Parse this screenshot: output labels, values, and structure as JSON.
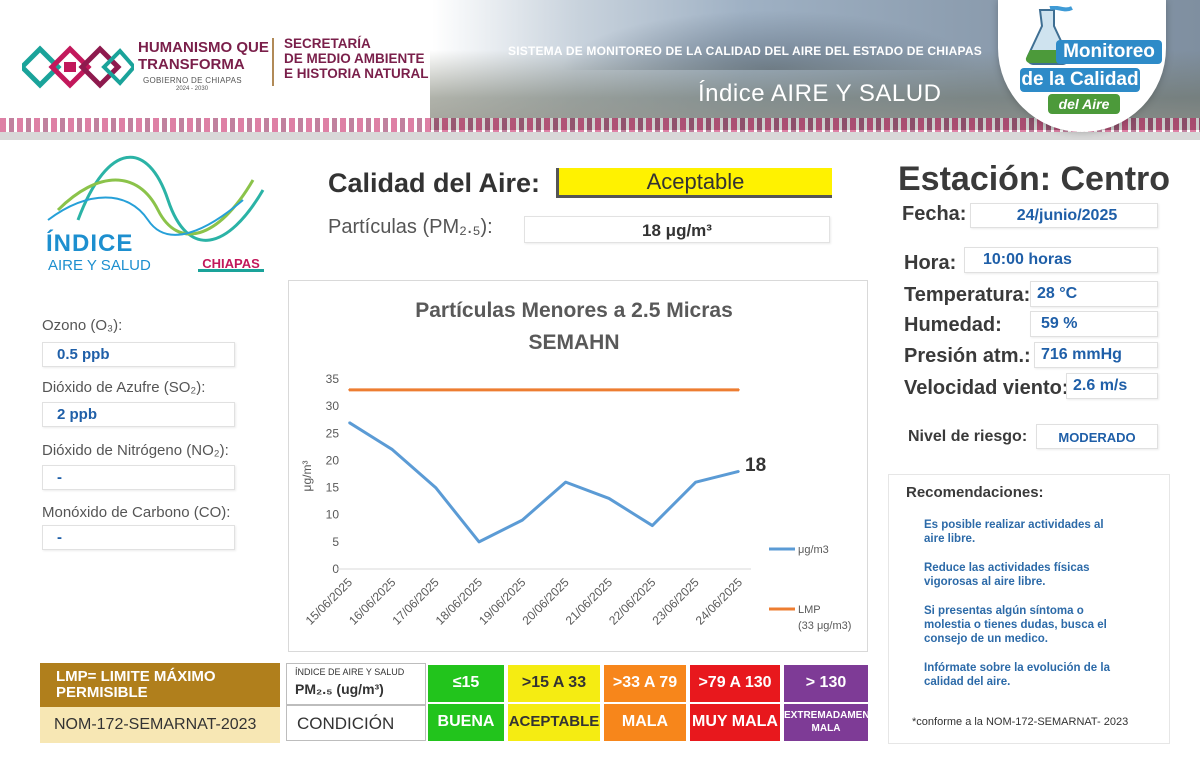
{
  "header": {
    "gov_line1": "HUMANISMO QUE",
    "gov_line2": "TRANSFORMA",
    "gov_line3": "GOBIERNO DE CHIAPAS",
    "gov_years": "2024 - 2030",
    "secretaria": [
      "SECRETARÍA",
      "DE MEDIO AMBIENTE",
      "E HISTORIA NATURAL"
    ],
    "system_title": "SISTEMA DE MONITOREO DE LA CALIDAD DEL AIRE DEL ESTADO DE CHIAPAS",
    "index_title": "Índice AIRE Y SALUD",
    "badge": [
      "Monitoreo",
      "de la Calidad",
      "del Aire"
    ]
  },
  "left": {
    "logo_line1": "ÍNDICE",
    "logo_line2": "AIRE Y SALUD",
    "logo_chiapas": "CHIAPAS",
    "pollutants": [
      {
        "label": "Ozono (O₃):",
        "value": "0.5 ppb"
      },
      {
        "label": "Dióxido de Azufre  (SO₂):",
        "value": "2 ppb"
      },
      {
        "label": "Dióxido de Nitrógeno (NO₂):",
        "value": "-"
      },
      {
        "label": "Monóxido de Carbono (CO):",
        "value": "-"
      }
    ]
  },
  "center": {
    "calidad_label": "Calidad del Aire:",
    "calidad_value": "Aceptable",
    "pm_label": "Partículas (PM₂.₅):",
    "pm_value": "18 μg/m³"
  },
  "chart_data": {
    "type": "line",
    "title": "Partículas  Menores a 2.5 Micras",
    "subtitle": "SEMAHN",
    "ylabel": "μg/m³",
    "xlabel": "",
    "ylim": [
      0,
      35
    ],
    "yticks": [
      "0",
      "5",
      "10",
      "15",
      "20",
      "25",
      "30",
      "35"
    ],
    "categories": [
      "15/06/2025",
      "16/06/2025",
      "17/06/2025",
      "18/06/2025",
      "19/06/2025",
      "20/06/2025",
      "21/06/2025",
      "22/06/2025",
      "23/06/2025",
      "24/06/2025"
    ],
    "series": [
      {
        "name": "μg/m3",
        "color": "#5b9bd5",
        "values": [
          27,
          22,
          15,
          5,
          9,
          16,
          13,
          8,
          16,
          18
        ]
      },
      {
        "name": "LMP",
        "name_note": "(33 μg/m3)",
        "color": "#ed7d31",
        "values": [
          33,
          33,
          33,
          33,
          33,
          33,
          33,
          33,
          33,
          33
        ]
      }
    ],
    "end_label": "18",
    "grid": false,
    "legend": "right"
  },
  "right": {
    "station": "Estación: Centro",
    "fields": [
      {
        "label": "Fecha:",
        "value": "24/junio/2025"
      },
      {
        "label": "Hora:",
        "value": "10:00 horas"
      },
      {
        "label": "Temperatura:",
        "value": "28 °C"
      },
      {
        "label": "Humedad:",
        "value": "59 %"
      },
      {
        "label": "Presión atm.:",
        "value": "716 mmHg"
      },
      {
        "label": "Velocidad viento:",
        "value": "2.6 m/s"
      },
      {
        "label": "Nivel de riesgo:",
        "value": "MODERADO"
      }
    ],
    "reco_title": "Recomendaciones:",
    "recommendations": [
      "Es posible realizar actividades al aire libre.",
      "Reduce las actividades físicas vigorosas al aire libre.",
      "Si presentas algún síntoma o molestia o tienes dudas, busca el consejo de un medico.",
      "Infórmate sobre la evolución de la calidad del aire."
    ],
    "footnote": "*conforme a la NOM-172-SEMARNAT- 2023"
  },
  "legend_table": {
    "lmp_title": "LMP= LIMITE MÁXIMO PERMISIBLE",
    "norm": "NOM-172-SEMARNAT-2023",
    "head_small": "ÍNDICE DE AIRE Y SALUD",
    "head_big": "PM₂.₅ (ug/m³)",
    "condition_label": "CONDICIÓN",
    "ranges": [
      {
        "range": "≤15",
        "condition": "BUENA",
        "color": "#22c41c",
        "text_color": "#ffffff"
      },
      {
        "range": ">15 A 33",
        "condition": "ACEPTABLE",
        "color": "#f5ec12",
        "text_color": "#333333"
      },
      {
        "range": ">33 A 79",
        "condition": "MALA",
        "color": "#f7861b",
        "text_color": "#ffffff"
      },
      {
        "range": ">79 A 130",
        "condition": "MUY MALA",
        "color": "#e8181d",
        "text_color": "#ffffff"
      },
      {
        "range": "> 130",
        "condition": "EXTREMADAMENTE MALA",
        "color": "#7e3b96",
        "text_color": "#ffffff"
      }
    ]
  }
}
